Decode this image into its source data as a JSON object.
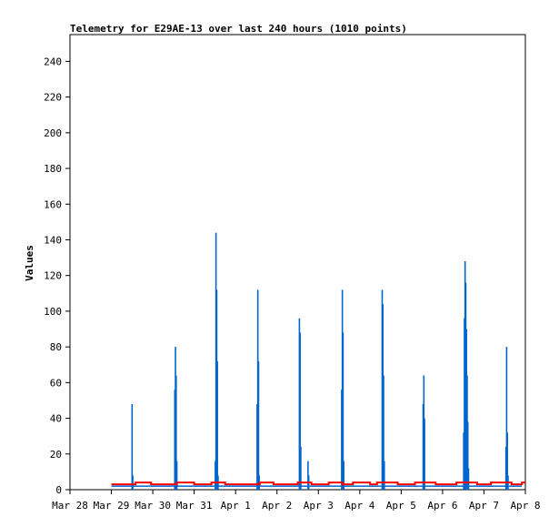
{
  "chart_data": {
    "type": "line",
    "title": "Telemetry for E29AE-13 over last 240 hours (1010 points)",
    "xlabel": "",
    "ylabel": "Values",
    "ylim": [
      0,
      255
    ],
    "yticks": [
      0,
      20,
      40,
      60,
      80,
      100,
      120,
      140,
      160,
      180,
      200,
      220,
      240
    ],
    "xlim": [
      "2024-03-28T00:00",
      "2024-04-08T00:00"
    ],
    "xticks": [
      {
        "label": "Mar 28",
        "x": "2024-03-28T00:00"
      },
      {
        "label": "Mar 29",
        "x": "2024-03-29T00:00"
      },
      {
        "label": "Mar 30",
        "x": "2024-03-30T00:00"
      },
      {
        "label": "Mar 31",
        "x": "2024-03-31T00:00"
      },
      {
        "label": "Apr 1",
        "x": "2024-04-01T00:00"
      },
      {
        "label": "Apr 2",
        "x": "2024-04-02T00:00"
      },
      {
        "label": "Apr 3",
        "x": "2024-04-03T00:00"
      },
      {
        "label": "Apr 4",
        "x": "2024-04-04T00:00"
      },
      {
        "label": "Apr 5",
        "x": "2024-04-05T00:00"
      },
      {
        "label": "Apr 6",
        "x": "2024-04-06T00:00"
      },
      {
        "label": "Apr 7",
        "x": "2024-04-07T00:00"
      },
      {
        "label": "Apr 8",
        "x": "2024-04-08T00:00"
      }
    ],
    "grid": false,
    "series": [
      {
        "color": "#0066cc",
        "style": "spikes",
        "baseline": 2,
        "spikes": [
          {
            "x": "2024-03-29T12:00",
            "values": [
              48,
              8
            ]
          },
          {
            "x": "2024-03-30T12:45",
            "values": [
              56,
              80,
              64,
              16
            ]
          },
          {
            "x": "2024-03-31T12:15",
            "values": [
              16,
              144,
              112,
              72,
              8
            ]
          },
          {
            "x": "2024-04-01T12:30",
            "values": [
              48,
              112,
              72,
              8
            ]
          },
          {
            "x": "2024-04-02T13:00",
            "values": [
              96,
              88,
              24
            ]
          },
          {
            "x": "2024-04-02T18:00",
            "values": [
              16,
              8
            ]
          },
          {
            "x": "2024-04-03T13:30",
            "values": [
              56,
              112,
              88,
              16
            ]
          },
          {
            "x": "2024-04-04T13:00",
            "values": [
              112,
              104,
              64,
              16
            ]
          },
          {
            "x": "2024-04-05T12:45",
            "values": [
              48,
              64,
              40
            ]
          },
          {
            "x": "2024-04-06T12:15",
            "values": [
              32,
              96,
              128,
              116,
              90,
              64,
              38,
              12
            ]
          },
          {
            "x": "2024-04-07T12:45",
            "values": [
              24,
              80,
              32,
              8
            ]
          }
        ]
      },
      {
        "color": "#ff0000",
        "style": "step",
        "points": [
          [
            "2024-03-29T00:00",
            3
          ],
          [
            "2024-03-29T14:00",
            4
          ],
          [
            "2024-03-29T23:00",
            3
          ],
          [
            "2024-03-30T14:00",
            4
          ],
          [
            "2024-03-31T00:00",
            3
          ],
          [
            "2024-03-31T10:00",
            4
          ],
          [
            "2024-03-31T18:00",
            3
          ],
          [
            "2024-04-01T14:00",
            4
          ],
          [
            "2024-04-01T22:00",
            3
          ],
          [
            "2024-04-02T12:00",
            4
          ],
          [
            "2024-04-02T20:00",
            3
          ],
          [
            "2024-04-03T06:00",
            4
          ],
          [
            "2024-04-03T14:00",
            3
          ],
          [
            "2024-04-03T20:00",
            4
          ],
          [
            "2024-04-04T06:00",
            3
          ],
          [
            "2024-04-04T10:00",
            4
          ],
          [
            "2024-04-04T22:00",
            3
          ],
          [
            "2024-04-05T08:00",
            4
          ],
          [
            "2024-04-05T20:00",
            3
          ],
          [
            "2024-04-06T08:00",
            4
          ],
          [
            "2024-04-06T20:00",
            3
          ],
          [
            "2024-04-07T04:00",
            4
          ],
          [
            "2024-04-07T16:00",
            3
          ],
          [
            "2024-04-07T22:00",
            4
          ],
          [
            "2024-04-08T00:00",
            4
          ]
        ]
      }
    ]
  }
}
